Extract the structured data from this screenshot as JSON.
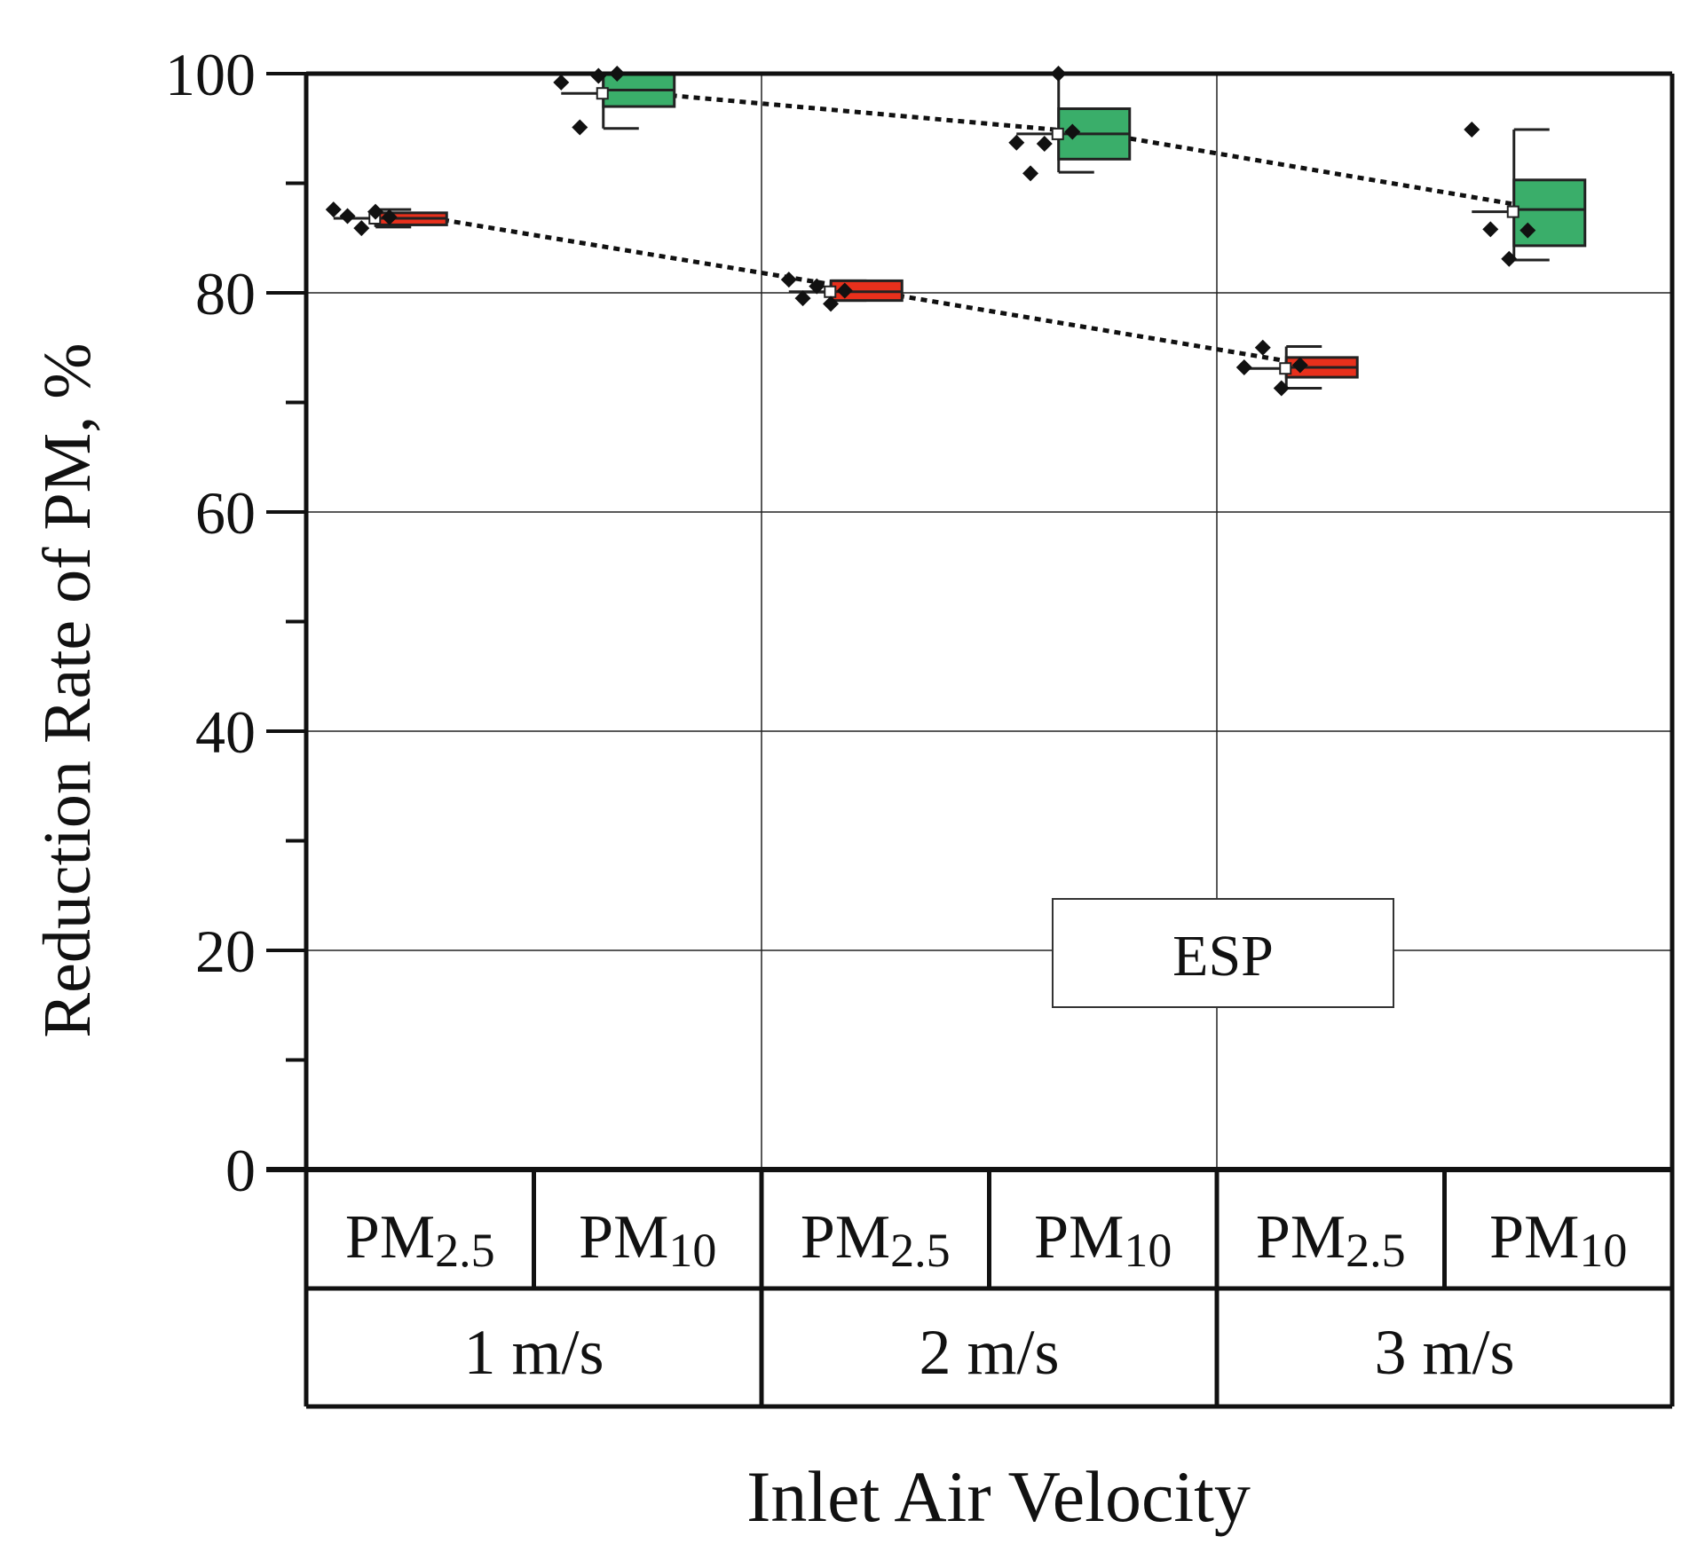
{
  "chart_data": {
    "type": "box",
    "title": "",
    "xlabel": "Inlet Air Velocity",
    "ylabel": "Reduction Rate of PM, %",
    "ylim": [
      0,
      100
    ],
    "yticks": [
      "0",
      "20",
      "40",
      "60",
      "80",
      "100"
    ],
    "yminor_ticks": [
      10,
      30,
      50,
      70,
      90
    ],
    "grid": true,
    "groups": [
      {
        "label": "1 m/s",
        "value": 1
      },
      {
        "label": "2 m/s",
        "value": 2
      },
      {
        "label": "3 m/s",
        "value": 3
      }
    ],
    "series_order": [
      "pm25",
      "pm10"
    ],
    "series": [
      {
        "key": "pm25",
        "name_main": "PM",
        "name_sub": "2.5",
        "color": "#e8301c",
        "trend_line": [
          87.0,
          80.1,
          73.1
        ],
        "boxes": [
          {
            "group": "1 m/s",
            "min": 86.0,
            "q1": 86.2,
            "median": 86.8,
            "mean": 86.8,
            "q3": 87.3,
            "max": 87.6,
            "points": [
              87.6,
              87.0,
              85.9,
              87.4,
              86.9
            ]
          },
          {
            "group": "2 m/s",
            "min": 79.3,
            "q1": 79.3,
            "median": 80.1,
            "mean": 80.1,
            "q3": 81.1,
            "max": 81.1,
            "points": [
              81.2,
              79.5,
              80.6,
              79.0,
              80.2
            ]
          },
          {
            "group": "3 m/s",
            "min": 71.3,
            "q1": 72.3,
            "median": 73.2,
            "mean": 73.1,
            "q3": 74.1,
            "max": 75.1,
            "points": [
              73.2,
              75.0,
              71.3,
              73.4
            ]
          }
        ]
      },
      {
        "key": "pm10",
        "name_main": "PM",
        "name_sub": "10",
        "color": "#3aae6a",
        "trend_line": [
          98.2,
          94.5,
          87.4
        ],
        "boxes": [
          {
            "group": "1 m/s",
            "min": 95.0,
            "q1": 97.0,
            "median": 98.5,
            "mean": 98.2,
            "q3": 100.0,
            "max": 100.0,
            "points": [
              99.2,
              95.1,
              99.8,
              100.0
            ]
          },
          {
            "group": "2 m/s",
            "min": 91.0,
            "q1": 92.2,
            "median": 94.5,
            "mean": 94.5,
            "q3": 96.8,
            "max": 100.0,
            "points": [
              93.7,
              90.9,
              93.6,
              100.0,
              94.7
            ]
          },
          {
            "group": "3 m/s",
            "min": 83.0,
            "q1": 84.3,
            "median": 87.6,
            "mean": 87.4,
            "q3": 90.3,
            "max": 94.9,
            "points": [
              94.9,
              85.8,
              83.1,
              85.7
            ]
          }
        ]
      }
    ],
    "annotation": "ESP"
  }
}
